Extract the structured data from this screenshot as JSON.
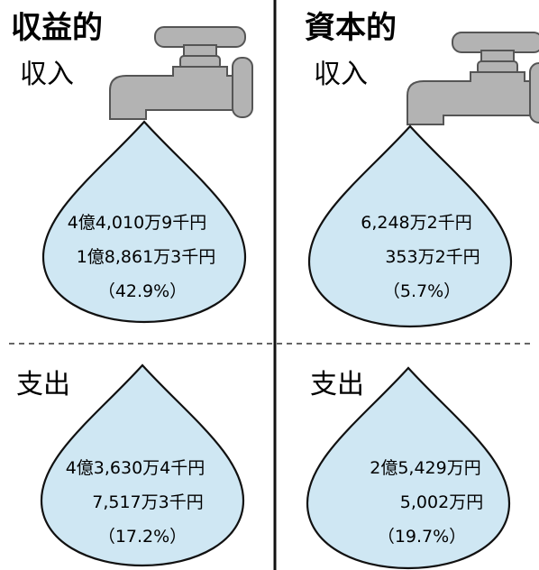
{
  "sections": [
    {
      "title": "収益的",
      "income": {
        "label": "収入",
        "lines": [
          "4億4,010万9千円",
          "1億8,861万3千円",
          "（42.9%）"
        ]
      },
      "expense": {
        "label": "支出",
        "lines": [
          "4億3,630万4千円",
          "7,517万3千円",
          "（17.2%）"
        ]
      }
    },
    {
      "title": "資本的",
      "income": {
        "label": "収入",
        "lines": [
          "6,248万2千円",
          "353万2千円",
          "（5.7%）"
        ]
      },
      "expense": {
        "label": "支出",
        "lines": [
          "2億5,429万円",
          "5,002万円",
          "（19.7%）"
        ]
      }
    }
  ]
}
